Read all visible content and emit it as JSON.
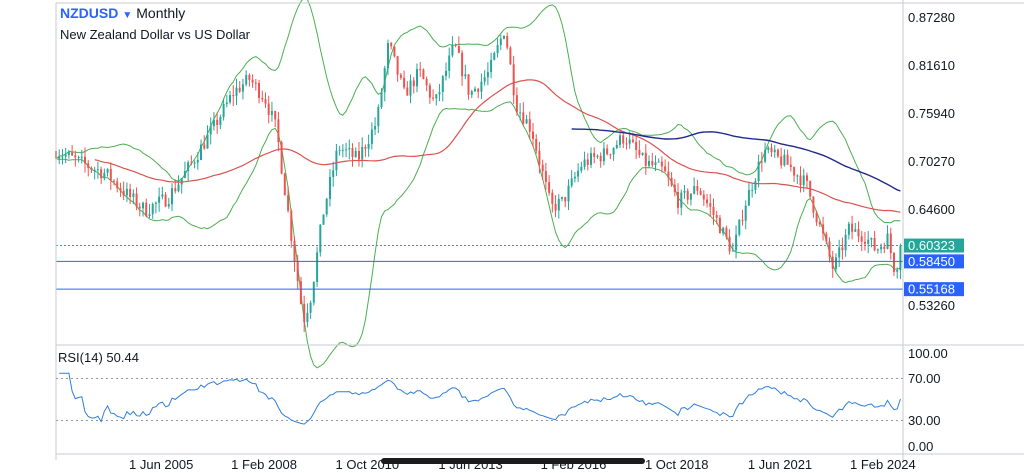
{
  "header": {
    "symbol": "NZDUSD",
    "interval": "Monthly",
    "description": "New Zealand Dollar vs US Dollar",
    "caret_icon": "chevron-down-icon"
  },
  "rsi": {
    "label": "RSI(14)",
    "value": "50.44",
    "levels": [
      "100.00",
      "70.00",
      "30.00",
      "0.00"
    ],
    "line_color": "#2f7ed8"
  },
  "chart_data": {
    "type": "line",
    "series": [
      {
        "type": "candlestick"
      },
      {
        "type": "moving-average",
        "color": "#d9534f"
      },
      {
        "type": "moving-average",
        "color": "#1f2a8c"
      },
      {
        "type": "bollinger-bands",
        "color": "#4caf50"
      }
    ],
    "x_ticks": [
      "1 Jun 2005",
      "1 Feb 2008",
      "1 Oct 2010",
      "1 Jun 2013",
      "1 Feb 2016",
      "1 Oct 2018",
      "1 Jun 2021",
      "1 Feb 2024"
    ],
    "x_tick_years": [
      2005.42,
      2008.08,
      2010.75,
      2013.42,
      2016.08,
      2018.75,
      2021.42,
      2024.08
    ],
    "x_range": [
      2002.7,
      2024.6
    ],
    "y_ticks": [
      0.8728,
      0.8161,
      0.7594,
      0.7027,
      0.646,
      0.5326
    ],
    "y_tick_labels": [
      "0.87280",
      "0.81610",
      "0.75940",
      "0.70270",
      "0.64600",
      "0.53260"
    ],
    "y_range": [
      0.488,
      0.89
    ],
    "price_labels": [
      {
        "value": 0.60323,
        "text": "0.60323",
        "color": "#26a69a",
        "style": "dotted"
      },
      {
        "value": 0.5845,
        "text": "0.58450",
        "color": "#2962ff",
        "style": "solid"
      },
      {
        "value": 0.55168,
        "text": "0.55168",
        "color": "#2962ff",
        "style": "solid"
      }
    ],
    "up_color": "#26a69a",
    "down_color": "#ef5350",
    "grid": false
  }
}
